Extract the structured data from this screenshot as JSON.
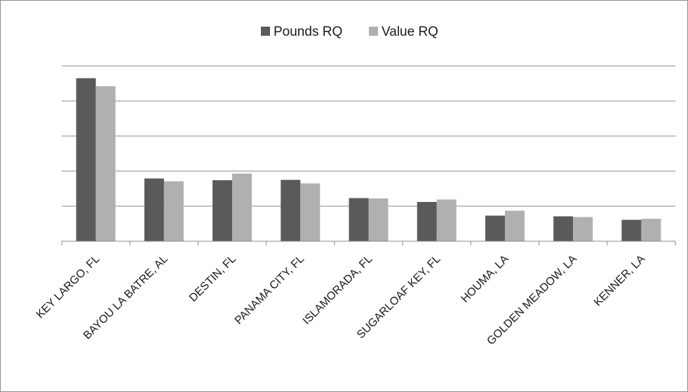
{
  "chart_data": {
    "type": "bar",
    "title": "",
    "xlabel": "",
    "ylabel": "",
    "categories": [
      "KEY LARGO, FL",
      "BAYOU LA BATRE, AL",
      "DESTIN, FL",
      "PANAMA CITY, FL",
      "ISLAMORADA, FL",
      "SUGARLOAF KEY, FL",
      "HOUMA, LA",
      "GOLDEN MEADOW, LA",
      "KENNER, LA"
    ],
    "series": [
      {
        "name": "Pounds RQ",
        "color": "#5a5a5a",
        "values": [
          4.65,
          1.79,
          1.74,
          1.75,
          1.23,
          1.12,
          0.73,
          0.71,
          0.61
        ]
      },
      {
        "name": "Value RQ",
        "color": "#b0b0b0",
        "values": [
          4.42,
          1.71,
          1.93,
          1.65,
          1.22,
          1.19,
          0.87,
          0.69,
          0.64
        ]
      }
    ],
    "ylim": [
      0,
      5
    ],
    "grid": true,
    "y_tick_labels_shown": false,
    "legend": "top-center"
  }
}
